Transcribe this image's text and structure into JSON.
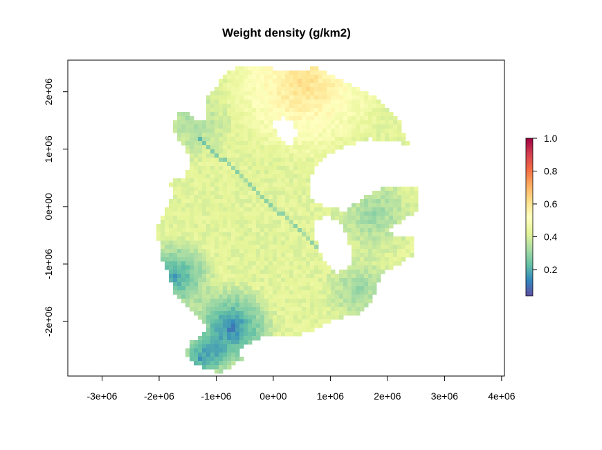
{
  "chart_data": {
    "type": "heatmap",
    "title": "Weight density (g/km2)",
    "xlabel": "",
    "ylabel": "",
    "xlim": [
      -3600000,
      4050000
    ],
    "ylim": [
      -2950000,
      2550000
    ],
    "x_ticks": [
      {
        "value": -3000000,
        "label": "-3e+06"
      },
      {
        "value": -2000000,
        "label": "-2e+06"
      },
      {
        "value": -1000000,
        "label": "-1e+06"
      },
      {
        "value": 0,
        "label": "0e+00"
      },
      {
        "value": 1000000,
        "label": "1e+06"
      },
      {
        "value": 2000000,
        "label": "2e+06"
      },
      {
        "value": 3000000,
        "label": "3e+06"
      },
      {
        "value": 4000000,
        "label": "4e+06"
      }
    ],
    "y_ticks": [
      {
        "value": -2000000,
        "label": "-2e+06"
      },
      {
        "value": -1000000,
        "label": "-1e+06"
      },
      {
        "value": 0,
        "label": "0e+00"
      },
      {
        "value": 1000000,
        "label": "1e+06"
      },
      {
        "value": 2000000,
        "label": "2e+06"
      }
    ],
    "colorbar": {
      "range": [
        0.04,
        1.0
      ],
      "ticks": [
        {
          "value": 0.2,
          "label": "0.2"
        },
        {
          "value": 0.4,
          "label": "0.4"
        },
        {
          "value": 0.6,
          "label": "0.6"
        },
        {
          "value": 0.8,
          "label": "0.8"
        },
        {
          "value": 1.0,
          "label": "1.0"
        }
      ],
      "palette": [
        "#5E4FA2",
        "#3288BD",
        "#66C2A5",
        "#ABDDA4",
        "#E6F598",
        "#FFFFBF",
        "#FEE08B",
        "#FDAE61",
        "#F46D43",
        "#D53E4F",
        "#9E0142"
      ]
    },
    "grid": false,
    "legend_position": "right"
  }
}
